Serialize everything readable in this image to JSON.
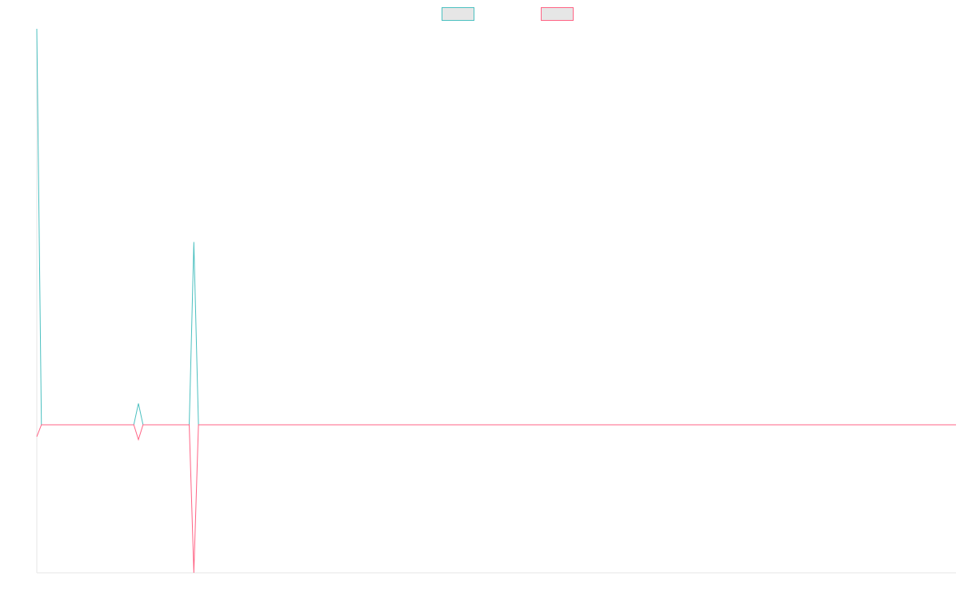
{
  "chart_data": {
    "type": "line",
    "title": "",
    "xlabel": "",
    "ylabel": "",
    "legend_position": "top-center",
    "grid": false,
    "n_points": 200,
    "ylim": [
      -0.5,
      1.3
    ],
    "series": [
      {
        "name": "",
        "color": "#4bc0c0",
        "fill": "#e6e6e6",
        "values": {
          "default": 0,
          "points": [
            [
              0,
              1.3
            ],
            [
              22,
              0.07
            ],
            [
              34,
              0.6
            ]
          ]
        }
      },
      {
        "name": "",
        "color": "#ff6384",
        "fill": "#e6e6e6",
        "values": {
          "default": 0,
          "points": [
            [
              0,
              -0.04
            ],
            [
              22,
              -0.05
            ],
            [
              34,
              -0.5
            ]
          ]
        }
      }
    ]
  }
}
